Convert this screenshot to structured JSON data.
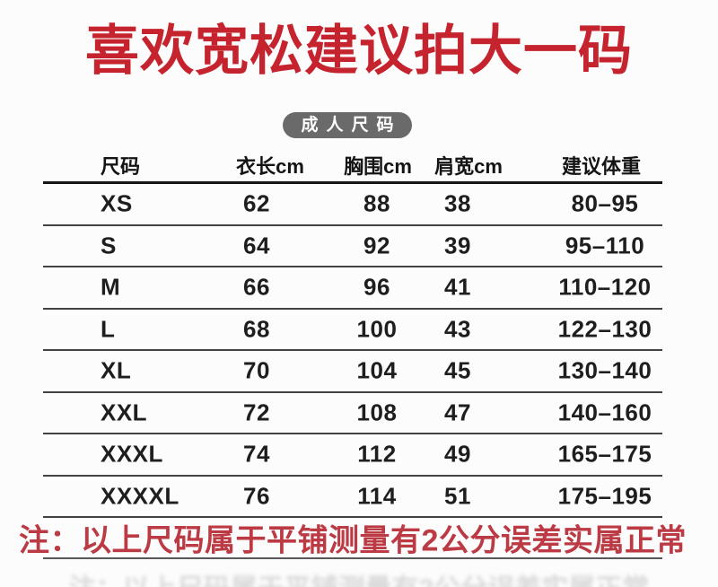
{
  "title": "喜欢宽松建议拍大一码",
  "badge": {
    "label": "成人尺码"
  },
  "table": {
    "headers": [
      "尺码",
      "衣长cm",
      "胸围cm",
      "肩宽cm",
      "建议体重"
    ],
    "rows": [
      [
        "XS",
        "62",
        "88",
        "38",
        "80–95"
      ],
      [
        "S",
        "64",
        "92",
        "39",
        "95–110"
      ],
      [
        "M",
        "66",
        "96",
        "41",
        "110–120"
      ],
      [
        "L",
        "68",
        "100",
        "43",
        "122–130"
      ],
      [
        "XL",
        "70",
        "104",
        "45",
        "130–140"
      ],
      [
        "XXL",
        "72",
        "108",
        "47",
        "140–160"
      ],
      [
        "XXXL",
        "74",
        "112",
        "49",
        "165–175"
      ],
      [
        "XXXXL",
        "76",
        "114",
        "51",
        "175–195"
      ]
    ]
  },
  "note": "注：以上尺码属于平铺测量有2公分误差实属正常",
  "colors": {
    "title_red": "#c5242e",
    "note_red": "#bc3a44",
    "badge_gray": "#6a6a6a",
    "line_dark": "#161616",
    "row_line": "#424242",
    "text_dark": "#1e1e1e"
  }
}
